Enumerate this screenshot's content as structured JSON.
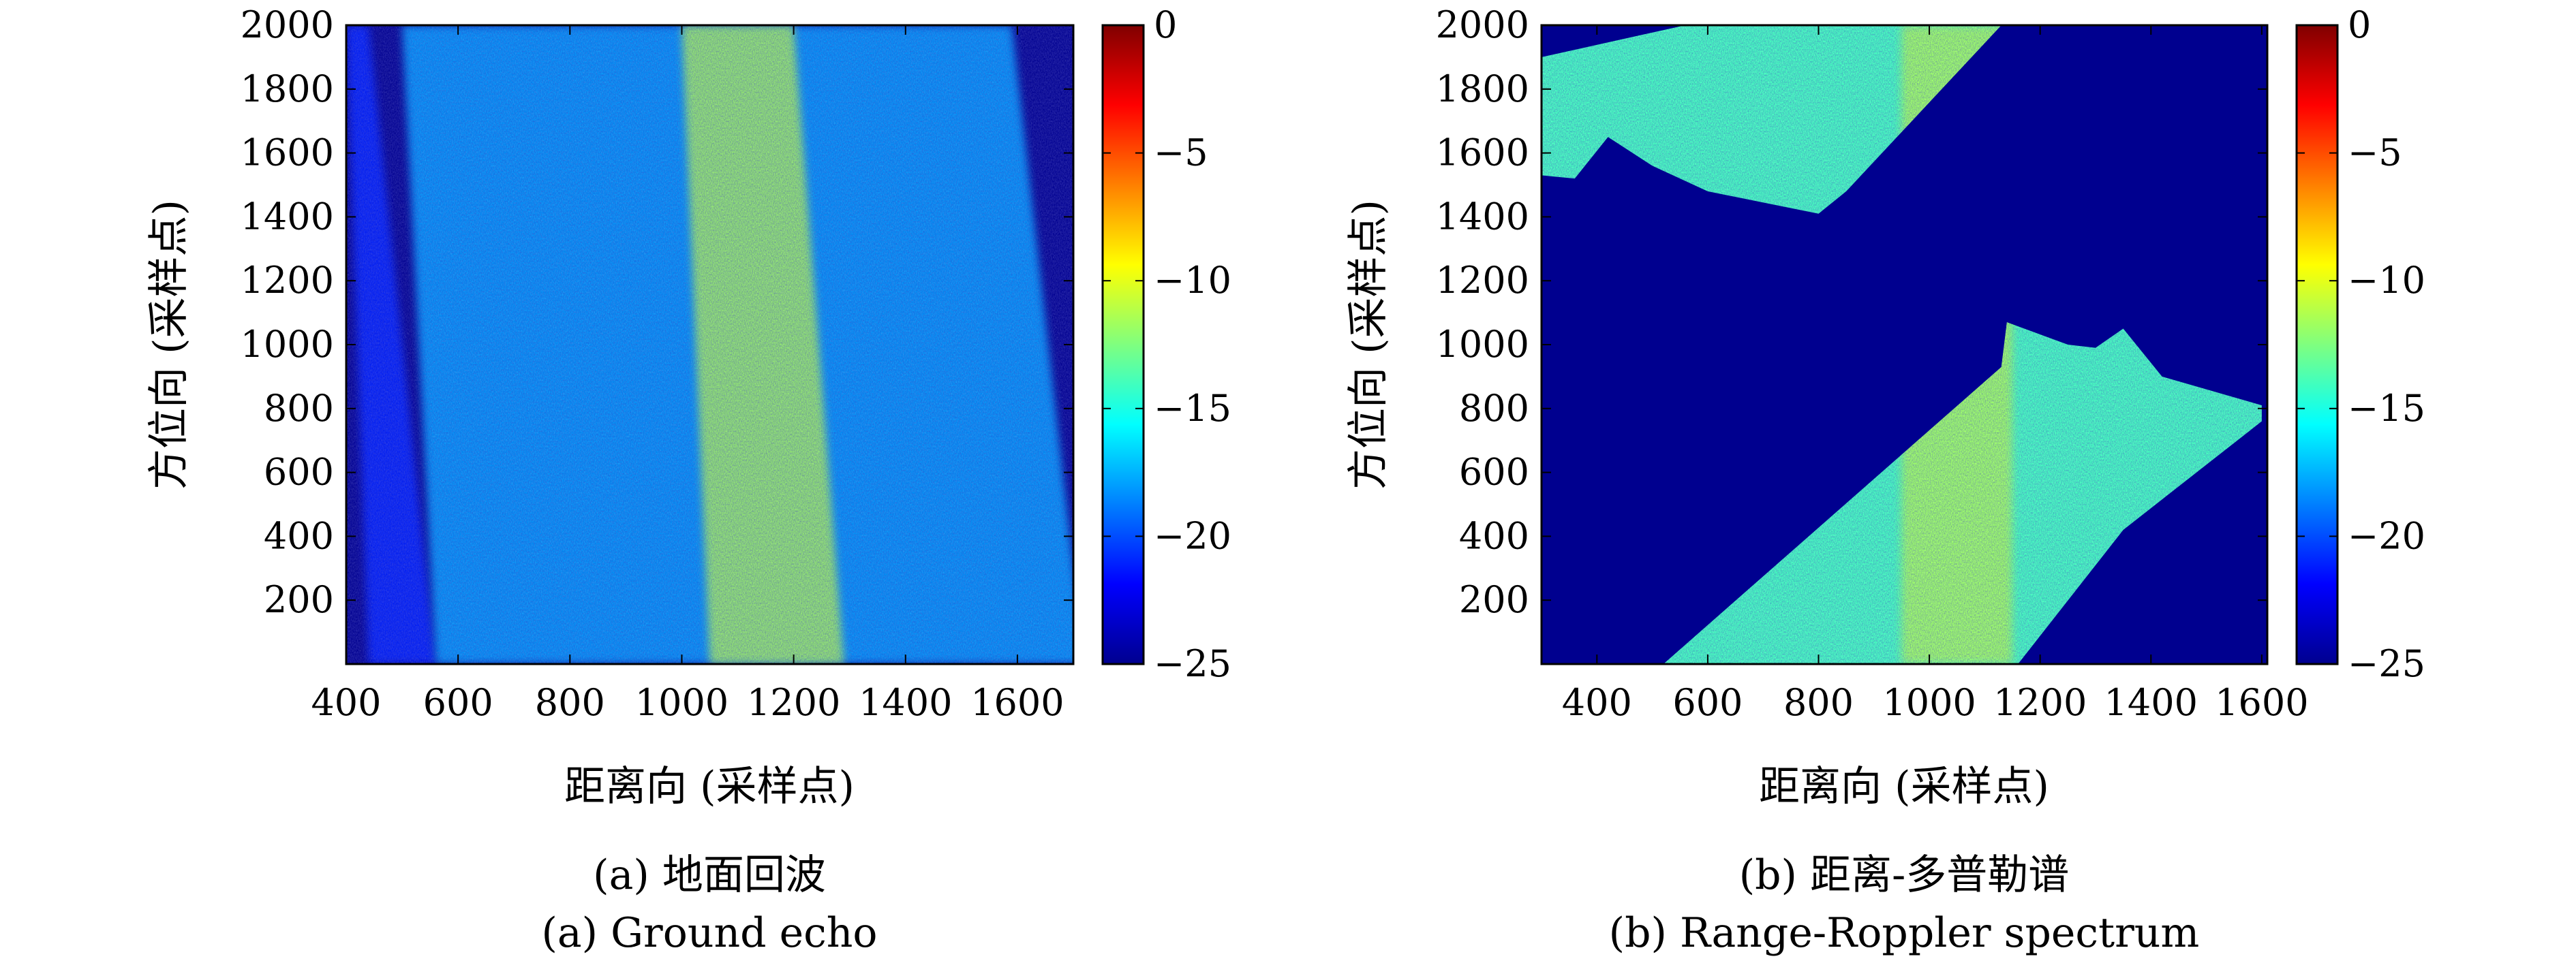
{
  "chart_data": [
    {
      "type": "heatmap",
      "panel": "a",
      "caption_cn": "(a) 地面回波",
      "caption_en": "(a) Ground echo",
      "xlabel": "距离向 (采样点)",
      "ylabel": "方位向 (采样点)",
      "xlim": [
        400,
        1700
      ],
      "ylim": [
        0,
        2000
      ],
      "xticks": [
        400,
        600,
        800,
        1000,
        1200,
        1400,
        1600
      ],
      "yticks": [
        200,
        400,
        600,
        800,
        1000,
        1200,
        1400,
        1600,
        1800,
        2000
      ],
      "colorbar": {
        "range": [
          -25,
          0
        ],
        "ticks": [
          "0",
          "−5",
          "−10",
          "−15",
          "−20",
          "−25"
        ],
        "colormap": "jet"
      },
      "description_values": {
        "features": [
          {
            "kind": "strip",
            "x_bottom": [
              440,
              560
            ],
            "x_top": [
              400,
              440
            ],
            "level_dB": -21
          },
          {
            "kind": "band",
            "x_bottom": [
              560,
              1720
            ],
            "x_top": [
              500,
              1590
            ],
            "level_dB": -18
          },
          {
            "kind": "bright_core",
            "x_bottom": [
              1050,
              1290
            ],
            "x_top": [
              1000,
              1200
            ],
            "level_dB": -11
          },
          {
            "kind": "background",
            "level_dB": -25
          }
        ]
      },
      "grid": false
    },
    {
      "type": "heatmap",
      "panel": "b",
      "caption_cn": "(b) 距离-多普勒谱",
      "caption_en": "(b) Range-Roppler spectrum",
      "xlabel": "距离向 (采样点)",
      "ylabel": "方位向 (采样点)",
      "xlim": [
        300,
        1610
      ],
      "ylim": [
        0,
        2000
      ],
      "xticks": [
        400,
        600,
        800,
        1000,
        1200,
        1400,
        1600
      ],
      "yticks": [
        200,
        400,
        600,
        800,
        1000,
        1200,
        1400,
        1600,
        1800,
        2000
      ],
      "colorbar": {
        "range": [
          -25,
          0
        ],
        "ticks": [
          "0",
          "−5",
          "−10",
          "−15",
          "−20",
          "−25"
        ],
        "colormap": "jet"
      },
      "description_values": {
        "regions": [
          {
            "name": "upper",
            "polygon": [
              [
                300,
                1900
              ],
              [
                300,
                1530
              ],
              [
                360,
                1520
              ],
              [
                420,
                1650
              ],
              [
                500,
                1560
              ],
              [
                600,
                1480
              ],
              [
                800,
                1410
              ],
              [
                850,
                1480
              ],
              [
                1130,
                2000
              ],
              [
                1130,
                2000
              ],
              [
                560,
                2000
              ]
            ]
          },
          {
            "name": "lower",
            "polygon": [
              [
                520,
                0
              ],
              [
                1130,
                930
              ],
              [
                1140,
                1070
              ],
              [
                1250,
                1000
              ],
              [
                1300,
                990
              ],
              [
                1350,
                1050
              ],
              [
                1420,
                900
              ],
              [
                1600,
                810
              ],
              [
                1600,
                760
              ],
              [
                1350,
                420
              ],
              [
                1160,
                0
              ]
            ]
          }
        ],
        "bright_core_x": [
          950,
          1150
        ],
        "level_dB": -14
      },
      "grid": false
    }
  ]
}
